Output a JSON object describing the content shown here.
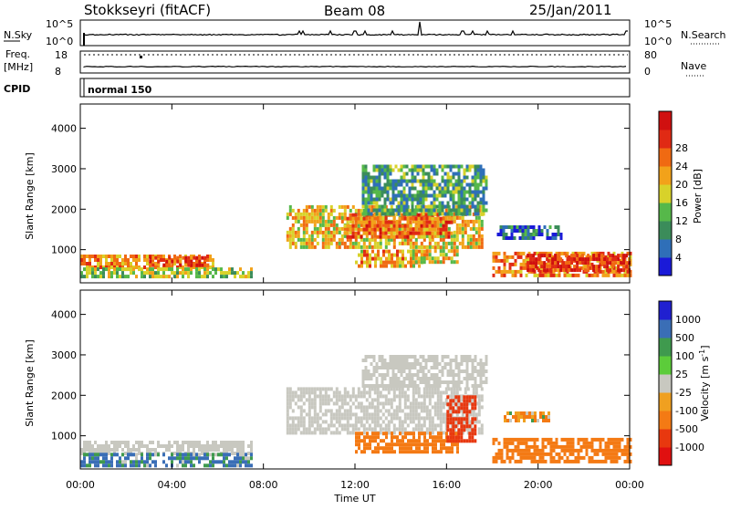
{
  "header": {
    "station": "Stokkseyri (fitACF)",
    "beam": "Beam 08",
    "date": "25/Jan/2011"
  },
  "top_panel": {
    "left_label": "N.Sky",
    "left_ticks": [
      "10^5",
      "10^0"
    ],
    "right_label": "N.Search",
    "right_ticks": [
      "10^5",
      "10^0"
    ]
  },
  "freq_panel": {
    "left_label_1": "Freq.",
    "left_label_2": "[MHz]",
    "left_ticks": [
      "18",
      "8"
    ],
    "right_label": "Nave",
    "right_ticks": [
      "80",
      "0"
    ]
  },
  "cpid_panel": {
    "label": "CPID",
    "mode_text": "normal 150"
  },
  "colors": {
    "power": [
      "#1a1ad8",
      "#2f6fb8",
      "#3b8c5a",
      "#56b84a",
      "#d8d22a",
      "#f2a21a",
      "#f06a12",
      "#e02a14",
      "#d01010"
    ],
    "velocity": [
      "#2020d0",
      "#3a6eb6",
      "#3f9a4e",
      "#5ccc3a",
      "#c8c8c0",
      "#f0a020",
      "#f47a14",
      "#e8380f",
      "#e01010"
    ]
  },
  "chart_data": [
    {
      "type": "heatmap",
      "quantity": "power",
      "ylabel": "Slant Range [km]",
      "xlabel": "Time UT",
      "x_ticks": [
        "00:00",
        "04:00",
        "08:00",
        "12:00",
        "16:00",
        "20:00",
        "00:00"
      ],
      "x_range_hours": [
        0,
        24
      ],
      "y_ticks": [
        1000,
        2000,
        3000,
        4000
      ],
      "y_range_km": [
        180,
        4600
      ],
      "colorbar_label": "Power [dB]",
      "colorbar_ticks": [
        4,
        8,
        12,
        16,
        20,
        24,
        28
      ],
      "colorbar_range": [
        0,
        32
      ],
      "regions": [
        {
          "t0": 0.0,
          "t1": 5.8,
          "r0": 560,
          "r1": 880,
          "v": 21
        },
        {
          "t0": 3.0,
          "t1": 5.6,
          "r0": 650,
          "r1": 840,
          "v": 26
        },
        {
          "t0": 0.0,
          "t1": 7.5,
          "r0": 300,
          "r1": 560,
          "v": 14
        },
        {
          "t0": 9.0,
          "t1": 17.6,
          "r0": 1100,
          "r1": 2100,
          "v": 18
        },
        {
          "t0": 11.5,
          "t1": 16.2,
          "r0": 1300,
          "r1": 1900,
          "v": 23
        },
        {
          "t0": 12.3,
          "t1": 17.8,
          "r0": 1900,
          "r1": 3100,
          "v": 10
        },
        {
          "t0": 12.0,
          "t1": 15.0,
          "r0": 600,
          "r1": 1000,
          "v": 20
        },
        {
          "t0": 14.5,
          "t1": 16.5,
          "r0": 700,
          "r1": 1100,
          "v": 17
        },
        {
          "t0": 18.0,
          "t1": 24.0,
          "r0": 320,
          "r1": 950,
          "v": 22
        },
        {
          "t0": 19.5,
          "t1": 24.0,
          "r0": 500,
          "r1": 900,
          "v": 27
        },
        {
          "t0": 18.2,
          "t1": 21.0,
          "r0": 1300,
          "r1": 1600,
          "v": 6
        }
      ]
    },
    {
      "type": "heatmap",
      "quantity": "velocity",
      "ylabel": "Slant Range [km]",
      "xlabel": "Time UT",
      "x_ticks": [
        "00:00",
        "04:00",
        "08:00",
        "12:00",
        "16:00",
        "20:00",
        "00:00"
      ],
      "x_range_hours": [
        0,
        24
      ],
      "y_ticks": [
        1000,
        2000,
        3000,
        4000
      ],
      "y_range_km": [
        180,
        4600
      ],
      "colorbar_label": "Velocity [m s^-1]",
      "colorbar_ticks": [
        "1000",
        "500",
        "100",
        "25",
        "-25",
        "-100",
        "-500",
        "-1000"
      ],
      "colorbar_range": [
        -1000,
        1000
      ],
      "regions": [
        {
          "t0": 0.0,
          "t1": 7.5,
          "r0": 560,
          "r1": 880,
          "v": 0
        },
        {
          "t0": 0.0,
          "t1": 7.5,
          "r0": 280,
          "r1": 580,
          "v": 150
        },
        {
          "t0": 9.0,
          "t1": 17.6,
          "r0": 1100,
          "r1": 2200,
          "v": 0
        },
        {
          "t0": 12.3,
          "t1": 17.8,
          "r0": 2200,
          "r1": 3000,
          "v": 0
        },
        {
          "t0": 12.0,
          "t1": 16.5,
          "r0": 600,
          "r1": 1100,
          "v": -300
        },
        {
          "t0": 16.0,
          "t1": 17.2,
          "r0": 900,
          "r1": 2000,
          "v": -800
        },
        {
          "t0": 18.0,
          "t1": 24.0,
          "r0": 320,
          "r1": 950,
          "v": -300
        },
        {
          "t0": 18.5,
          "t1": 20.5,
          "r0": 1400,
          "r1": 1600,
          "v": -100
        }
      ]
    }
  ]
}
